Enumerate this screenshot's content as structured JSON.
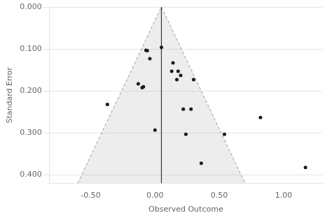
{
  "chart_data": {
    "type": "scatter",
    "xlabel": "Observed Outcome",
    "ylabel": "Standard Error",
    "xlim": [
      -0.82,
      1.3
    ],
    "ylim": [
      0.42,
      0.0
    ],
    "xticks": [
      {
        "value": -0.5,
        "label": "-0.50"
      },
      {
        "value": 0.0,
        "label": "0.00"
      },
      {
        "value": 0.5,
        "label": "0.50"
      },
      {
        "value": 1.0,
        "label": "1.00"
      }
    ],
    "yticks": [
      {
        "value": 0.0,
        "label": "0.000"
      },
      {
        "value": 0.1,
        "label": "0.100"
      },
      {
        "value": 0.2,
        "label": "0.200"
      },
      {
        "value": 0.3,
        "label": "0.300"
      },
      {
        "value": 0.4,
        "label": "0.400"
      }
    ],
    "grid": "y",
    "series": [
      {
        "type": "area",
        "color": "#999999",
        "line_style": "dashed",
        "x": [
          -0.601,
          0.05,
          0.701
        ],
        "values": [
          0.42,
          0.0,
          0.42
        ]
      },
      {
        "type": "line",
        "color": "#333333",
        "line_style": "solid",
        "x": [
          0.05,
          0.05
        ],
        "values": [
          0.0,
          0.42
        ]
      },
      {
        "type": "scatter",
        "color": "#1a1a1a",
        "marker": "circle",
        "x": [
          -0.37,
          -0.13,
          -0.1,
          -0.09,
          -0.07,
          -0.06,
          -0.04,
          0.0,
          0.05,
          0.13,
          0.17,
          0.2,
          0.22,
          0.24,
          0.28,
          0.3,
          0.36,
          0.54,
          0.82,
          0.18,
          0.14,
          1.17
        ],
        "values": [
          0.232,
          0.183,
          0.192,
          0.19,
          0.103,
          0.104,
          0.123,
          0.293,
          0.096,
          0.153,
          0.173,
          0.163,
          0.243,
          0.303,
          0.243,
          0.173,
          0.372,
          0.303,
          0.263,
          0.153,
          0.133,
          0.382
        ]
      }
    ]
  }
}
